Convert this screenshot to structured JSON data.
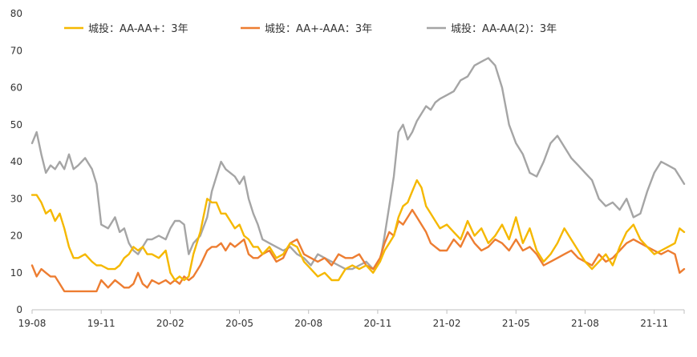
{
  "chart_data": {
    "type": "line",
    "title": "",
    "xlabel": "",
    "ylabel": "",
    "ylim": [
      0,
      80
    ],
    "y_ticks": [
      0,
      10,
      20,
      30,
      40,
      50,
      60,
      70,
      80
    ],
    "x_tick_labels": [
      "19-08",
      "19-11",
      "20-02",
      "20-05",
      "20-08",
      "20-11",
      "21-02",
      "21-05",
      "21-08",
      "21-11"
    ],
    "x_tick_positions": [
      0,
      3,
      6,
      9,
      12,
      15,
      18,
      21,
      24,
      27
    ],
    "x_range": [
      0,
      28.3
    ],
    "grid": false,
    "legend_position": "top",
    "series": [
      {
        "name": "城投：AA-AA+：3年",
        "color": "#F5B800",
        "x": [
          0,
          0.2,
          0.4,
          0.6,
          0.8,
          1.0,
          1.2,
          1.4,
          1.6,
          1.8,
          2.0,
          2.3,
          2.6,
          2.8,
          3.0,
          3.3,
          3.6,
          3.8,
          4.0,
          4.2,
          4.4,
          4.6,
          4.8,
          5.0,
          5.2,
          5.5,
          5.8,
          6.0,
          6.2,
          6.4,
          6.6,
          6.8,
          7.0,
          7.3,
          7.6,
          7.8,
          8.0,
          8.2,
          8.4,
          8.6,
          8.8,
          9.0,
          9.2,
          9.4,
          9.6,
          9.8,
          10.0,
          10.3,
          10.6,
          10.9,
          11.2,
          11.5,
          11.8,
          12.1,
          12.4,
          12.7,
          13.0,
          13.3,
          13.6,
          13.9,
          14.2,
          14.5,
          14.8,
          15.1,
          15.3,
          15.5,
          15.7,
          15.9,
          16.1,
          16.3,
          16.5,
          16.7,
          16.9,
          17.1,
          17.3,
          17.5,
          17.7,
          18.0,
          18.3,
          18.6,
          18.9,
          19.2,
          19.5,
          19.8,
          20.1,
          20.4,
          20.7,
          21.0,
          21.3,
          21.6,
          21.9,
          22.2,
          22.5,
          22.8,
          23.1,
          23.4,
          23.7,
          24.0,
          24.3,
          24.6,
          24.9,
          25.2,
          25.5,
          25.8,
          26.1,
          26.4,
          26.7,
          27.0,
          27.3,
          27.6,
          27.9,
          28.1,
          28.3
        ],
        "values": [
          31,
          31,
          29,
          26,
          27,
          24,
          26,
          22,
          17,
          14,
          14,
          15,
          13,
          12,
          12,
          11,
          11,
          12,
          14,
          15,
          17,
          16,
          17,
          15,
          15,
          14,
          16,
          10,
          8,
          9,
          8,
          9,
          15,
          21,
          30,
          29,
          29,
          26,
          26,
          24,
          22,
          23,
          20,
          19,
          17,
          17,
          15,
          17,
          14,
          15,
          18,
          17,
          13,
          11,
          9,
          10,
          8,
          8,
          11,
          12,
          11,
          12,
          10,
          13,
          16,
          18,
          20,
          25,
          28,
          29,
          32,
          35,
          33,
          28,
          26,
          24,
          22,
          23,
          21,
          19,
          24,
          20,
          22,
          18,
          20,
          23,
          19,
          25,
          18,
          22,
          16,
          13,
          15,
          18,
          22,
          19,
          16,
          13,
          11,
          13,
          15,
          12,
          17,
          21,
          23,
          19,
          17,
          15,
          16,
          17,
          18,
          22,
          21
        ]
      },
      {
        "name": "城投：AA+-AAA：3年",
        "color": "#ED7D31",
        "x": [
          0,
          0.2,
          0.4,
          0.6,
          0.8,
          1.0,
          1.2,
          1.4,
          1.6,
          1.8,
          2.0,
          2.3,
          2.6,
          2.8,
          3.0,
          3.3,
          3.6,
          3.8,
          4.0,
          4.2,
          4.4,
          4.6,
          4.8,
          5.0,
          5.2,
          5.5,
          5.8,
          6.0,
          6.2,
          6.4,
          6.6,
          6.8,
          7.0,
          7.3,
          7.6,
          7.8,
          8.0,
          8.2,
          8.4,
          8.6,
          8.8,
          9.0,
          9.2,
          9.4,
          9.6,
          9.8,
          10.0,
          10.3,
          10.6,
          10.9,
          11.2,
          11.5,
          11.8,
          12.1,
          12.4,
          12.7,
          13.0,
          13.3,
          13.6,
          13.9,
          14.2,
          14.5,
          14.8,
          15.1,
          15.3,
          15.5,
          15.7,
          15.9,
          16.1,
          16.3,
          16.5,
          16.7,
          16.9,
          17.1,
          17.3,
          17.5,
          17.7,
          18.0,
          18.3,
          18.6,
          18.9,
          19.2,
          19.5,
          19.8,
          20.1,
          20.4,
          20.7,
          21.0,
          21.3,
          21.6,
          21.9,
          22.2,
          22.5,
          22.8,
          23.1,
          23.4,
          23.7,
          24.0,
          24.3,
          24.6,
          24.9,
          25.2,
          25.5,
          25.8,
          26.1,
          26.4,
          26.7,
          27.0,
          27.3,
          27.6,
          27.9,
          28.1,
          28.3
        ],
        "values": [
          12,
          9,
          11,
          10,
          9,
          9,
          7,
          5,
          5,
          5,
          5,
          5,
          5,
          5,
          8,
          6,
          8,
          7,
          6,
          6,
          7,
          10,
          7,
          6,
          8,
          7,
          8,
          7,
          8,
          7,
          9,
          8,
          9,
          12,
          16,
          17,
          17,
          18,
          16,
          18,
          17,
          18,
          19,
          15,
          14,
          14,
          15,
          16,
          13,
          14,
          18,
          19,
          15,
          14,
          13,
          14,
          12,
          15,
          14,
          14,
          15,
          12,
          11,
          14,
          18,
          21,
          20,
          24,
          23,
          25,
          27,
          25,
          23,
          21,
          18,
          17,
          16,
          16,
          19,
          17,
          21,
          18,
          16,
          17,
          19,
          18,
          16,
          19,
          16,
          17,
          15,
          12,
          13,
          14,
          15,
          16,
          14,
          13,
          12,
          15,
          13,
          14,
          16,
          18,
          19,
          18,
          17,
          16,
          15,
          16,
          15,
          10,
          11
        ]
      },
      {
        "name": "城投：AA-AA(2)：3年",
        "color": "#A5A5A5",
        "x": [
          0,
          0.2,
          0.4,
          0.6,
          0.8,
          1.0,
          1.2,
          1.4,
          1.6,
          1.8,
          2.0,
          2.3,
          2.6,
          2.8,
          3.0,
          3.3,
          3.6,
          3.8,
          4.0,
          4.2,
          4.4,
          4.6,
          4.8,
          5.0,
          5.2,
          5.5,
          5.8,
          6.0,
          6.2,
          6.4,
          6.6,
          6.8,
          7.0,
          7.3,
          7.6,
          7.8,
          8.0,
          8.2,
          8.4,
          8.6,
          8.8,
          9.0,
          9.2,
          9.4,
          9.6,
          9.8,
          10.0,
          10.3,
          10.6,
          10.9,
          11.2,
          11.5,
          11.8,
          12.1,
          12.4,
          12.7,
          13.0,
          13.3,
          13.6,
          13.9,
          14.2,
          14.5,
          14.8,
          15.1,
          15.3,
          15.5,
          15.7,
          15.9,
          16.1,
          16.3,
          16.5,
          16.7,
          16.9,
          17.1,
          17.3,
          17.5,
          17.7,
          18.0,
          18.3,
          18.6,
          18.9,
          19.2,
          19.5,
          19.8,
          20.1,
          20.4,
          20.7,
          21.0,
          21.3,
          21.6,
          21.9,
          22.2,
          22.5,
          22.8,
          23.1,
          23.4,
          23.7,
          24.0,
          24.3,
          24.6,
          24.9,
          25.2,
          25.5,
          25.8,
          26.1,
          26.4,
          26.7,
          27.0,
          27.3,
          27.6,
          27.9,
          28.1,
          28.3
        ],
        "values": [
          45,
          48,
          42,
          37,
          39,
          38,
          40,
          38,
          42,
          38,
          39,
          41,
          38,
          34,
          23,
          22,
          25,
          21,
          22,
          18,
          16,
          15,
          17,
          19,
          19,
          20,
          19,
          22,
          24,
          24,
          23,
          15,
          18,
          20,
          25,
          32,
          36,
          40,
          38,
          37,
          36,
          34,
          36,
          30,
          26,
          23,
          19,
          18,
          17,
          16,
          17,
          15,
          14,
          12,
          15,
          14,
          13,
          12,
          11,
          11,
          12,
          13,
          11,
          13,
          20,
          28,
          36,
          48,
          50,
          46,
          48,
          51,
          53,
          55,
          54,
          56,
          57,
          58,
          59,
          62,
          63,
          66,
          67,
          68,
          66,
          60,
          50,
          45,
          42,
          37,
          36,
          40,
          45,
          47,
          44,
          41,
          39,
          37,
          35,
          30,
          28,
          29,
          27,
          30,
          25,
          26,
          32,
          37,
          40,
          39,
          38,
          36,
          34
        ]
      }
    ]
  }
}
